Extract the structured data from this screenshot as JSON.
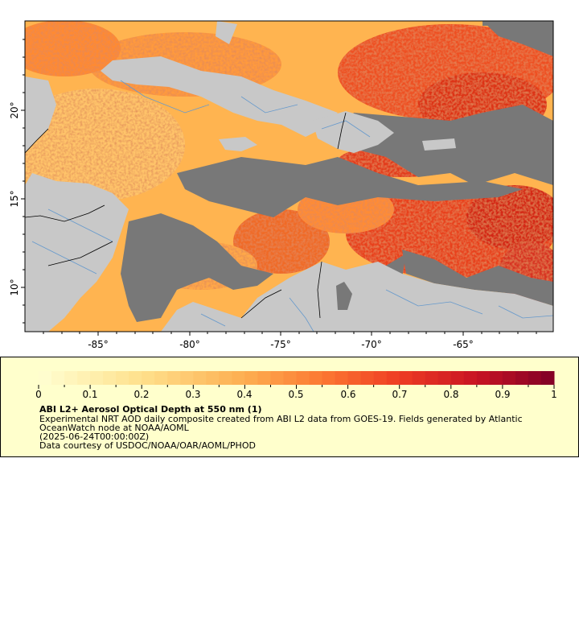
{
  "map": {
    "lat_ticks": [
      "20°",
      "15°",
      "10°"
    ],
    "lon_ticks": [
      "-85°",
      "-80°",
      "-75°",
      "-70°",
      "-65°"
    ],
    "colors": {
      "land": "#c8c8c8",
      "nodata": "#787878",
      "border": "#000000",
      "rivers": "#6699cc"
    }
  },
  "legend": {
    "ticks": [
      "0",
      "0.1",
      "0.2",
      "0.3",
      "0.4",
      "0.5",
      "0.6",
      "0.7",
      "0.8",
      "0.9",
      "1"
    ],
    "title": "ABI L2+ Aerosol Optical Depth at 550 nm (1)",
    "line1": "Experimental NRT AOD daily composite created from ABI L2 data from GOES-19. Fields generated by Atlantic",
    "line2": "OceanWatch node at NOAA/AOML",
    "line3": "(2025-06-24T00:00:00Z)",
    "line4": "Data courtesy of USDOC/NOAA/OAR/AOML/PHOD"
  }
}
